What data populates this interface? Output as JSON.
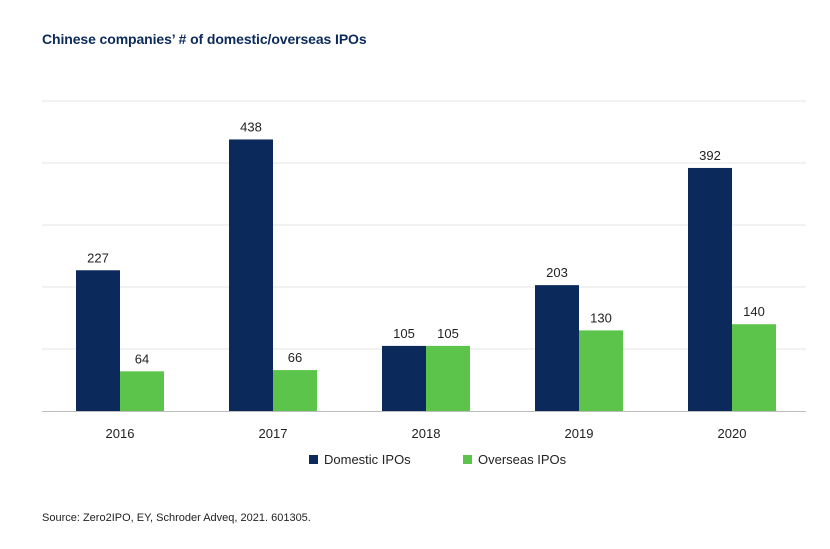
{
  "title": "Chinese companies’ # of domestic/overseas IPOs",
  "source": "Source: Zero2IPO, EY, Schroder Adveq, 2021. 601305.",
  "colors": {
    "domestic": "#0b2a5b",
    "overseas": "#5cc44a",
    "grid": "#e6e6e6",
    "axis": "#bdbdbd",
    "title": "#0b2a5b",
    "text": "#222222"
  },
  "chart_data": {
    "type": "bar",
    "title": "Chinese companies’ # of domestic/overseas IPOs",
    "xlabel": "",
    "ylabel": "",
    "categories": [
      "2016",
      "2017",
      "2018",
      "2019",
      "2020"
    ],
    "series": [
      {
        "name": "Domestic IPOs",
        "values": [
          227,
          438,
          105,
          203,
          392
        ]
      },
      {
        "name": "Overseas IPOs",
        "values": [
          64,
          66,
          105,
          130,
          140
        ]
      }
    ],
    "ylim": [
      0,
      500
    ],
    "grid": true,
    "legend": "bottom-center",
    "data_labels": true
  }
}
